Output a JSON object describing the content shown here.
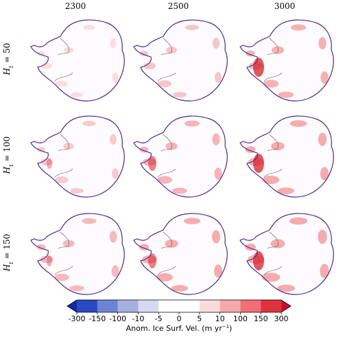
{
  "chart_data": {
    "type": "map-grid",
    "columns": [
      "2300",
      "2500",
      "3000"
    ],
    "row_label_symbol": "H",
    "row_label_subscript": "t",
    "rows": [
      "= 50",
      "= 100",
      "= 150"
    ],
    "colorbar": {
      "ticks": [
        -300,
        -150,
        -100,
        -10,
        -5,
        0,
        5,
        10,
        100,
        150,
        300
      ],
      "colors": [
        "#2a48c0",
        "#6f83d4",
        "#a6b1e2",
        "#d6daf1",
        "#ffffff",
        "#ffffff",
        "#fbdcdc",
        "#f5a9ab",
        "#ee6f74",
        "#e0323c"
      ],
      "under_color": "#0c2aa6",
      "over_color": "#c8102e",
      "label_prefix": "Anom. Ice Surf. Vel. (m yr",
      "label_superscript": "−1",
      "label_suffix": ")"
    }
  }
}
